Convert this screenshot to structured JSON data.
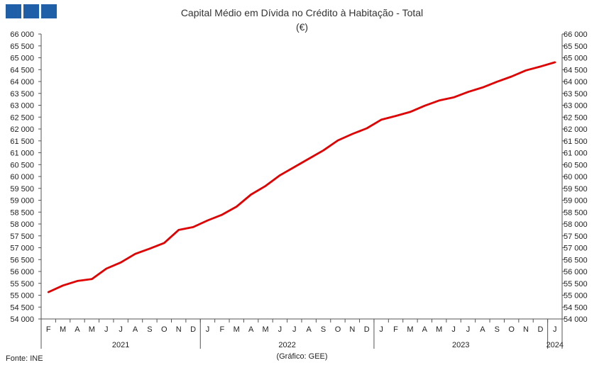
{
  "header": {
    "logo_icon": "three-blue-squares-logo",
    "brand_color": "#1f5fa8"
  },
  "footer": {
    "source": "Fonte: INE",
    "credit": "(Gráfico: GEE)"
  },
  "chart_data": {
    "type": "line",
    "title": "Capital Médio em Dívida no Crédito à Habitação - Total",
    "subtitle": "(€)",
    "xlabel": "",
    "ylabel": "",
    "ylim": [
      54000,
      66000
    ],
    "y_ticks": [
      "54 000",
      "54 500",
      "55 000",
      "55 500",
      "56 000",
      "56 500",
      "57 000",
      "57 500",
      "58 000",
      "58 500",
      "59 000",
      "59 500",
      "60 000",
      "60 500",
      "61 000",
      "61 500",
      "62 000",
      "62 500",
      "63 000",
      "63 500",
      "64 000",
      "64 500",
      "65 000",
      "65 500",
      "66 000"
    ],
    "y_tick_values": [
      54000,
      54500,
      55000,
      55500,
      56000,
      56500,
      57000,
      57500,
      58000,
      58500,
      59000,
      59500,
      60000,
      60500,
      61000,
      61500,
      62000,
      62500,
      63000,
      63500,
      64000,
      64500,
      65000,
      65500,
      66000
    ],
    "categories": [
      "F",
      "M",
      "A",
      "M",
      "J",
      "J",
      "A",
      "S",
      "O",
      "N",
      "D",
      "J",
      "F",
      "M",
      "A",
      "M",
      "J",
      "J",
      "A",
      "S",
      "O",
      "N",
      "D",
      "J",
      "F",
      "M",
      "A",
      "M",
      "J",
      "J",
      "A",
      "S",
      "O",
      "N",
      "D",
      "J"
    ],
    "year_labels": [
      {
        "label": "2021",
        "start": 0,
        "end": 10
      },
      {
        "label": "2022",
        "start": 11,
        "end": 22
      },
      {
        "label": "2023",
        "start": 23,
        "end": 34
      },
      {
        "label": "2024",
        "start": 35,
        "end": 35
      }
    ],
    "series": [
      {
        "color": "#e00000",
        "values": [
          55130,
          55410,
          55600,
          55680,
          56120,
          56380,
          56740,
          56960,
          57200,
          57750,
          57870,
          58150,
          58390,
          58730,
          59240,
          59600,
          60050,
          60400,
          60750,
          61100,
          61520,
          61790,
          62030,
          62390,
          62550,
          62720,
          62980,
          63200,
          63330,
          63560,
          63750,
          63990,
          64210,
          64470,
          64630,
          64810
        ]
      }
    ],
    "grid": false,
    "legend": "none"
  }
}
